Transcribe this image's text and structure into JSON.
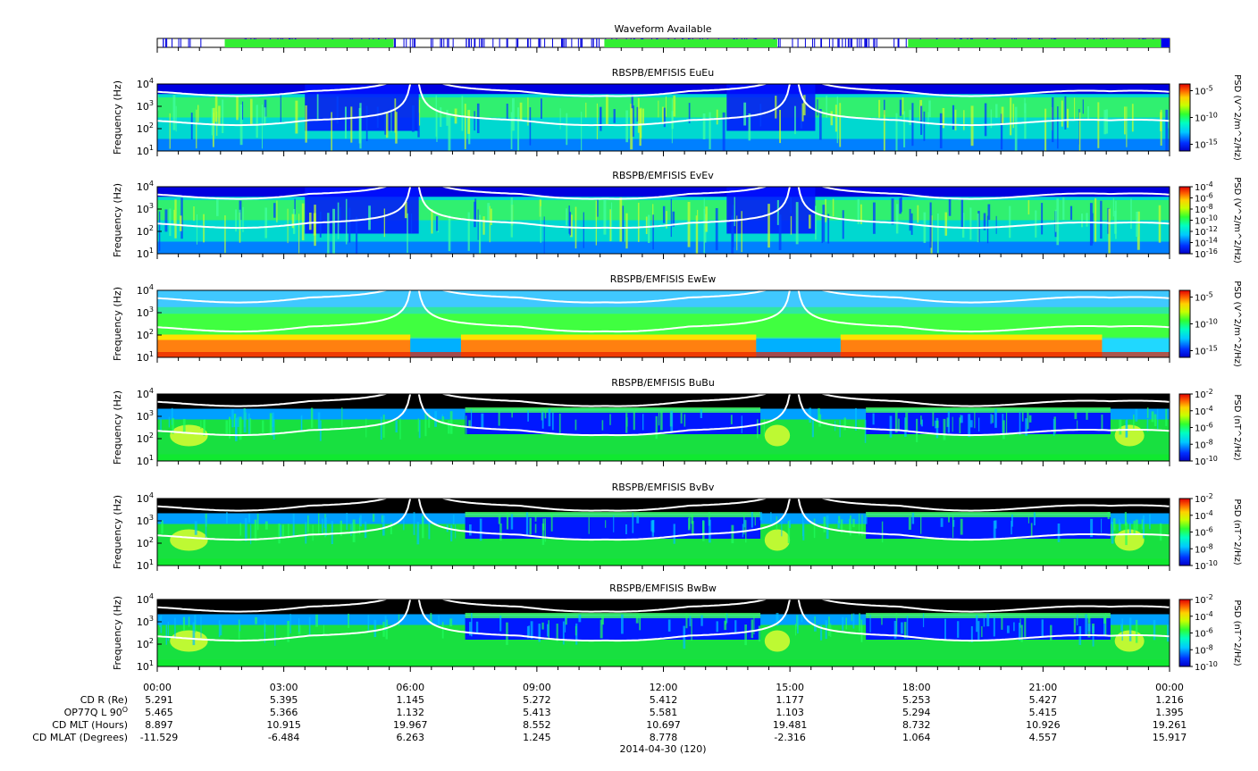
{
  "waveform": {
    "title": "Waveform Available",
    "green_segments": [
      [
        1.6,
        5.6
      ],
      [
        10.6,
        14.7
      ],
      [
        17.8,
        23.8
      ]
    ],
    "colors": {
      "available": "#33ee33",
      "tick": "#0000dd",
      "end": "#0000ee"
    }
  },
  "chart_data": [
    {
      "type": "heatmap",
      "title": "RBSPB/EMFISIS  EuEu",
      "ylabel": "Frequency (Hz)",
      "yscale": "log",
      "ylim": [
        10,
        10000
      ],
      "xlim": [
        0,
        24
      ],
      "colorbar_label": "PSD (V^2/m^2/Hz)",
      "colorbar_ticks": [
        "10-5",
        "10-10",
        "10-15"
      ],
      "background": "E-blue"
    },
    {
      "type": "heatmap",
      "title": "RBSPB/EMFISIS  EvEv",
      "ylabel": "Frequency (Hz)",
      "yscale": "log",
      "ylim": [
        10,
        10000
      ],
      "xlim": [
        0,
        24
      ],
      "colorbar_label": "PSD (V^2/m^2/Hz)",
      "colorbar_ticks": [
        "10-4",
        "10-6",
        "10-8",
        "10-10",
        "10-12",
        "10-14",
        "10-16"
      ],
      "background": "E-blue"
    },
    {
      "type": "heatmap",
      "title": "RBSPB/EMFISIS  EwEw",
      "ylabel": "Frequency (Hz)",
      "yscale": "log",
      "ylim": [
        10,
        10000
      ],
      "xlim": [
        0,
        24
      ],
      "colorbar_label": "PSD (V^2/m^2/Hz)",
      "colorbar_ticks": [
        "10-5",
        "10-10",
        "10-15"
      ],
      "background": "E-green"
    },
    {
      "type": "heatmap",
      "title": "RBSPB/EMFISIS  BuBu",
      "ylabel": "Frequency (Hz)",
      "yscale": "log",
      "ylim": [
        10,
        10000
      ],
      "xlim": [
        0,
        24
      ],
      "colorbar_label": "PSD (nT^2/Hz)",
      "colorbar_ticks": [
        "10-2",
        "10-4",
        "10-6",
        "10-8",
        "10-10"
      ],
      "background": "B"
    },
    {
      "type": "heatmap",
      "title": "RBSPB/EMFISIS  BvBv",
      "ylabel": "Frequency (Hz)",
      "yscale": "log",
      "ylim": [
        10,
        10000
      ],
      "xlim": [
        0,
        24
      ],
      "colorbar_label": "PSD (nT^2/Hz)",
      "colorbar_ticks": [
        "10-2",
        "10-4",
        "10-6",
        "10-8",
        "10-10"
      ],
      "background": "B"
    },
    {
      "type": "heatmap",
      "title": "RBSPB/EMFISIS  BwBw",
      "ylabel": "Frequency (Hz)",
      "yscale": "log",
      "ylim": [
        10,
        10000
      ],
      "xlim": [
        0,
        24
      ],
      "colorbar_label": "PSD (nT^2/Hz)",
      "colorbar_ticks": [
        "10-2",
        "10-4",
        "10-6",
        "10-8",
        "10-10"
      ],
      "background": "B"
    }
  ],
  "yticks": [
    "10",
    "10",
    "10",
    "10"
  ],
  "ytick_exponents": [
    "4",
    "3",
    "2",
    "1"
  ],
  "gyro_curve_dips_hours": [
    6.1,
    15.1
  ],
  "xaxis": {
    "tick_labels": [
      "00:00",
      "03:00",
      "06:00",
      "09:00",
      "12:00",
      "15:00",
      "18:00",
      "21:00",
      "00:00"
    ],
    "date_label": "2014-04-30 (120)"
  },
  "ephemeris": {
    "labels": [
      "CD R (Re)",
      "OP77Q L 90",
      "CD MLT (Hours)",
      "CD MLAT (Degrees)"
    ],
    "l_label_superscript": "O",
    "rows": [
      [
        "5.291",
        "5.395",
        "1.145",
        "5.272",
        "5.412",
        "1.177",
        "5.253",
        "5.427",
        "1.216"
      ],
      [
        "5.465",
        "5.366",
        "1.132",
        "5.413",
        "5.581",
        "1.103",
        "5.294",
        "5.415",
        "1.395"
      ],
      [
        "8.897",
        "10.915",
        "19.967",
        "8.552",
        "10.697",
        "19.481",
        "8.732",
        "10.926",
        "19.261"
      ],
      [
        "-11.529",
        "-6.484",
        "6.263",
        "1.245",
        "8.778",
        "-2.316",
        "1.064",
        "4.557",
        "15.917"
      ]
    ]
  }
}
